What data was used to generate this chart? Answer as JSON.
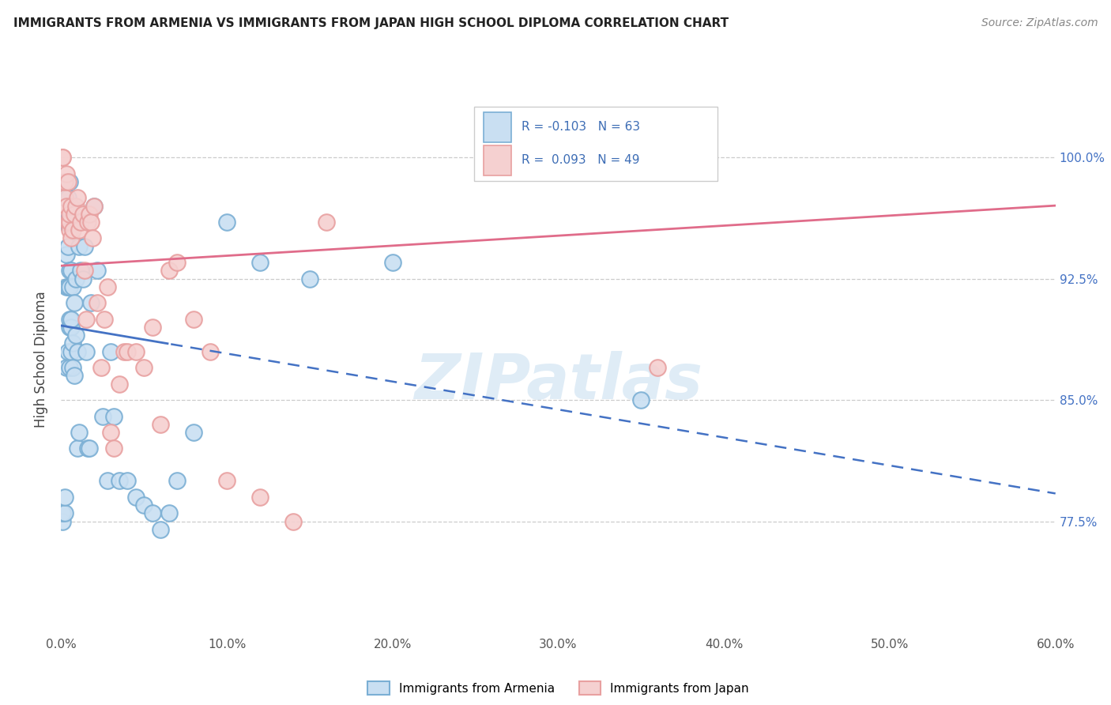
{
  "title": "IMMIGRANTS FROM ARMENIA VS IMMIGRANTS FROM JAPAN HIGH SCHOOL DIPLOMA CORRELATION CHART",
  "source": "Source: ZipAtlas.com",
  "ylabel": "High School Diploma",
  "ytick_labels": [
    "77.5%",
    "85.0%",
    "92.5%",
    "100.0%"
  ],
  "ytick_values": [
    0.775,
    0.85,
    0.925,
    1.0
  ],
  "legend_label1": "Immigrants from Armenia",
  "legend_label2": "Immigrants from Japan",
  "legend_r1": "R = -0.103",
  "legend_n1": "N = 63",
  "legend_r2": "R =  0.093",
  "legend_n2": "N = 49",
  "color_armenia": "#7bafd4",
  "color_japan": "#e8a0a0",
  "color_armenia_fill": "#c9dff2",
  "color_japan_fill": "#f5d0d0",
  "watermark": "ZIPatlas",
  "xmin": 0.0,
  "xmax": 0.6,
  "ymin": 0.705,
  "ymax": 1.045,
  "armenia_x": [
    0.001,
    0.001,
    0.002,
    0.002,
    0.002,
    0.002,
    0.003,
    0.003,
    0.003,
    0.003,
    0.004,
    0.004,
    0.004,
    0.004,
    0.004,
    0.005,
    0.005,
    0.005,
    0.005,
    0.005,
    0.005,
    0.006,
    0.006,
    0.006,
    0.006,
    0.007,
    0.007,
    0.007,
    0.008,
    0.008,
    0.009,
    0.009,
    0.01,
    0.01,
    0.011,
    0.011,
    0.012,
    0.013,
    0.014,
    0.015,
    0.016,
    0.017,
    0.018,
    0.02,
    0.022,
    0.025,
    0.028,
    0.03,
    0.032,
    0.035,
    0.04,
    0.045,
    0.05,
    0.055,
    0.06,
    0.065,
    0.07,
    0.08,
    0.1,
    0.12,
    0.15,
    0.2,
    0.35
  ],
  "armenia_y": [
    0.775,
    0.78,
    0.78,
    0.79,
    0.96,
    0.975,
    0.87,
    0.92,
    0.94,
    0.96,
    0.88,
    0.92,
    0.945,
    0.96,
    0.975,
    0.87,
    0.895,
    0.9,
    0.92,
    0.93,
    0.985,
    0.88,
    0.895,
    0.9,
    0.93,
    0.87,
    0.885,
    0.92,
    0.865,
    0.91,
    0.89,
    0.925,
    0.82,
    0.88,
    0.83,
    0.945,
    0.93,
    0.925,
    0.945,
    0.88,
    0.82,
    0.82,
    0.91,
    0.97,
    0.93,
    0.84,
    0.8,
    0.88,
    0.84,
    0.8,
    0.8,
    0.79,
    0.785,
    0.78,
    0.77,
    0.78,
    0.8,
    0.83,
    0.96,
    0.935,
    0.925,
    0.935,
    0.85
  ],
  "japan_x": [
    0.001,
    0.001,
    0.002,
    0.002,
    0.003,
    0.003,
    0.004,
    0.004,
    0.005,
    0.005,
    0.005,
    0.006,
    0.006,
    0.007,
    0.008,
    0.009,
    0.01,
    0.011,
    0.012,
    0.013,
    0.014,
    0.015,
    0.016,
    0.017,
    0.018,
    0.019,
    0.02,
    0.022,
    0.024,
    0.026,
    0.028,
    0.03,
    0.032,
    0.035,
    0.038,
    0.04,
    0.045,
    0.05,
    0.055,
    0.06,
    0.065,
    0.07,
    0.08,
    0.09,
    0.1,
    0.12,
    0.14,
    0.16,
    0.36
  ],
  "japan_y": [
    1.0,
    1.0,
    0.975,
    0.985,
    0.97,
    0.99,
    0.96,
    0.985,
    0.955,
    0.96,
    0.965,
    0.95,
    0.97,
    0.955,
    0.965,
    0.97,
    0.975,
    0.955,
    0.96,
    0.965,
    0.93,
    0.9,
    0.96,
    0.965,
    0.96,
    0.95,
    0.97,
    0.91,
    0.87,
    0.9,
    0.92,
    0.83,
    0.82,
    0.86,
    0.88,
    0.88,
    0.88,
    0.87,
    0.895,
    0.835,
    0.93,
    0.935,
    0.9,
    0.88,
    0.8,
    0.79,
    0.775,
    0.96,
    0.87
  ]
}
